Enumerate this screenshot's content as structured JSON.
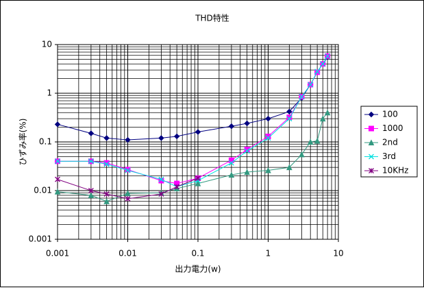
{
  "chart_data": {
    "type": "line",
    "title": "THD特性",
    "x_label": "出力電力(w)",
    "y_label": "ひずみ率(%)",
    "x": [
      0.001,
      0.003,
      0.005,
      0.01,
      0.03,
      0.05,
      0.1,
      0.3,
      0.5,
      1,
      2,
      3,
      4,
      5,
      6,
      7
    ],
    "series": [
      {
        "name": "100",
        "color": "#000080",
        "marker": "diamond",
        "values": [
          0.23,
          0.15,
          0.12,
          0.11,
          0.12,
          0.13,
          0.16,
          0.21,
          0.24,
          0.3,
          0.42,
          0.8,
          1.5,
          2.7,
          4,
          5.5
        ]
      },
      {
        "name": "1000",
        "color": "#ff00ff",
        "marker": "square",
        "values": [
          0.04,
          0.04,
          0.037,
          0.027,
          0.016,
          0.014,
          0.018,
          0.042,
          0.07,
          0.13,
          0.32,
          0.85,
          1.5,
          2.7,
          4,
          5.8
        ]
      },
      {
        "name": "2nd",
        "color": "#339980",
        "marker": "triangle",
        "values": [
          0.0095,
          0.008,
          0.006,
          0.0088,
          0.009,
          0.011,
          0.014,
          0.021,
          0.024,
          0.026,
          0.03,
          0.055,
          0.1,
          0.105,
          0.3,
          0.4
        ]
      },
      {
        "name": "3rd",
        "color": "#00e0e0",
        "marker": "cross",
        "values": [
          0.04,
          0.04,
          0.035,
          0.026,
          0.017,
          0.012,
          0.016,
          0.037,
          0.065,
          0.12,
          0.3,
          0.85,
          1.5,
          2.8,
          4,
          5.8
        ]
      },
      {
        "name": "10KHz",
        "color": "#800080",
        "marker": "star",
        "values": [
          0.017,
          0.01,
          0.0085,
          0.0068,
          0.0085,
          0.012,
          0.018,
          null,
          null,
          null,
          null,
          null,
          null,
          null,
          null,
          null
        ]
      }
    ],
    "xlim": [
      0.001,
      10
    ],
    "ylim": [
      0.001,
      10
    ],
    "xticks": [
      0.001,
      0.01,
      0.1,
      1,
      10
    ],
    "yticks": [
      0.001,
      0.01,
      0.1,
      1,
      10
    ],
    "xscale": "log",
    "yscale": "log",
    "grid": true,
    "minor_grid": true,
    "legend": "right"
  }
}
